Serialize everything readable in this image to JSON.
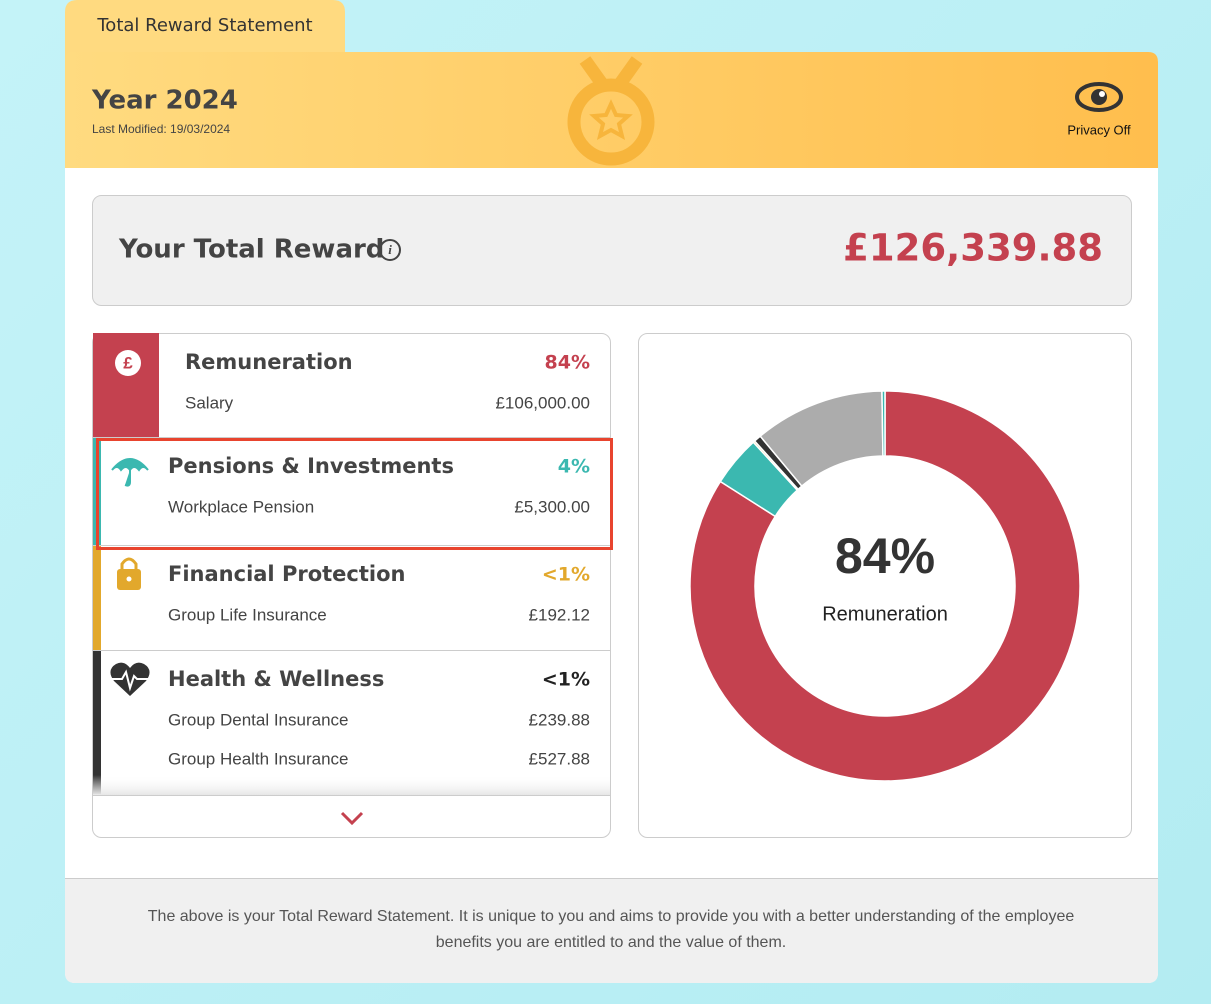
{
  "tab": "Total Reward Statement",
  "header": {
    "year": "Year 2024",
    "last_modified": "Last Modified: 19/03/2024",
    "privacy": "Privacy Off"
  },
  "total": {
    "label": "Your Total Reward",
    "amount": "£126,339.88"
  },
  "groups": [
    {
      "name": "Remuneration",
      "percent": "84%",
      "color": "#c4414f",
      "items": [
        {
          "label": "Salary",
          "amount": "£106,000.00"
        }
      ]
    },
    {
      "name": "Pensions & Investments",
      "percent": "4%",
      "color": "#3bb8b0",
      "items": [
        {
          "label": "Workplace Pension",
          "amount": "£5,300.00"
        }
      ]
    },
    {
      "name": "Financial Protection",
      "percent": "<1%",
      "color": "#e2a82c",
      "items": [
        {
          "label": "Group Life Insurance",
          "amount": "£192.12"
        }
      ]
    },
    {
      "name": "Health & Wellness",
      "percent": "<1%",
      "color": "#333333",
      "items": [
        {
          "label": "Group Dental Insurance",
          "amount": "£239.88"
        },
        {
          "label": "Group Health Insurance",
          "amount": "£527.88"
        }
      ]
    }
  ],
  "chart_data": {
    "type": "pie",
    "center_value": "84%",
    "center_label": "Remuneration",
    "values": [
      84,
      4.2,
      0.15,
      0.6,
      10.8,
      0.25
    ],
    "colors": [
      "#c4414f",
      "#3bb8b0",
      "#e2a82c",
      "#333333",
      "#acacac",
      "#3bb8b0"
    ]
  },
  "footer": [
    "The above is your Total Reward Statement. It is unique to you and aims to provide you with a better understanding of the employee",
    "benefits you are entitled to and the value of them."
  ]
}
